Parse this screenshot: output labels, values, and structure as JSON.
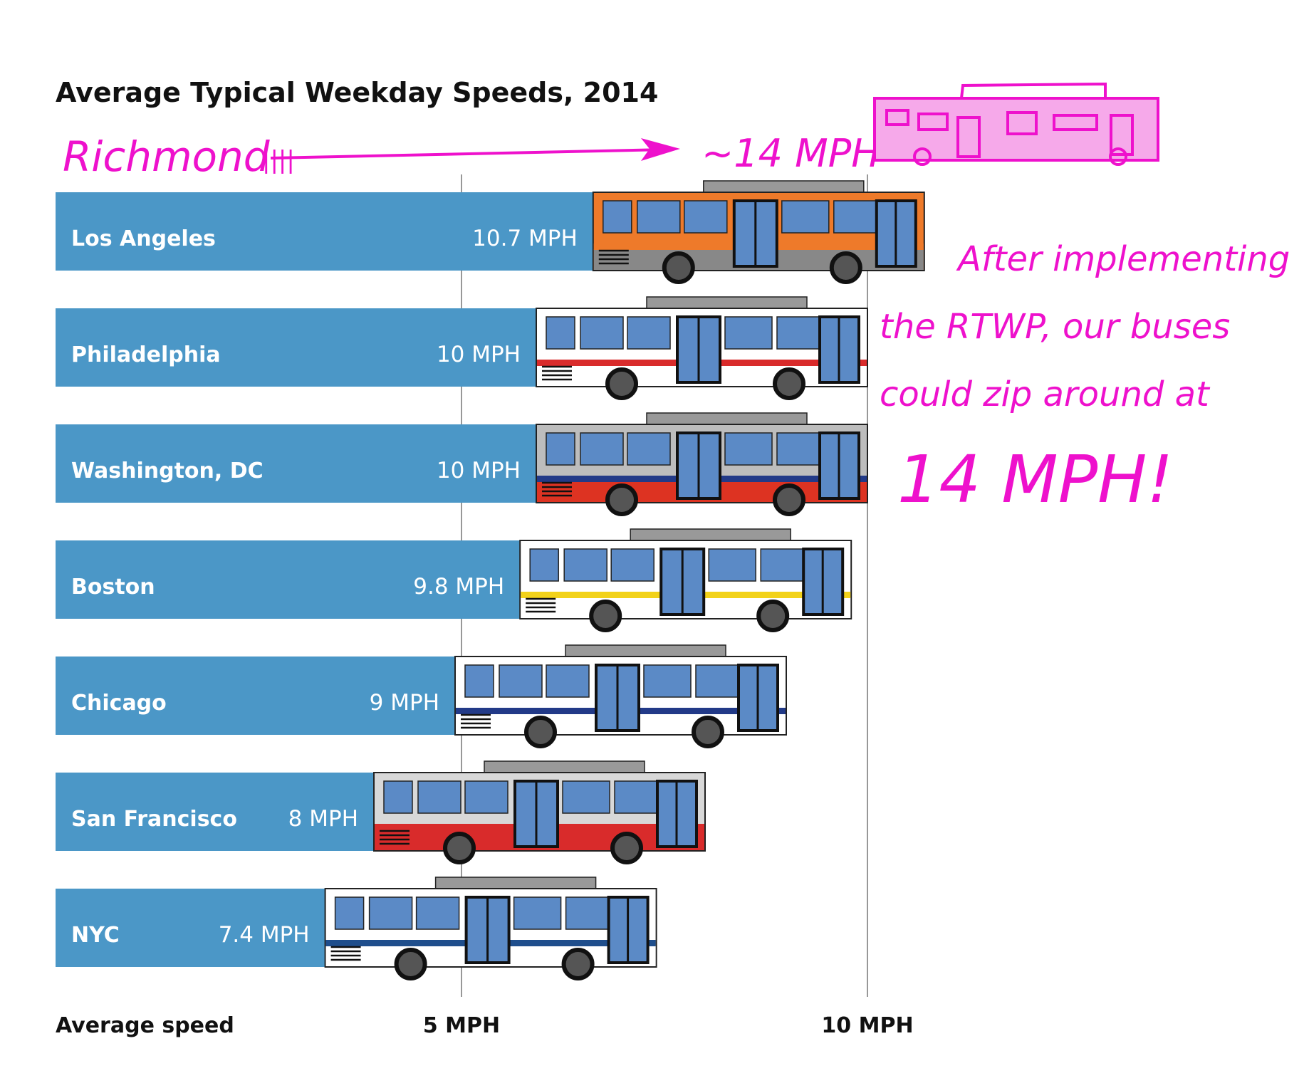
{
  "chart_data": {
    "type": "bar",
    "orientation": "horizontal",
    "title": "Average Typical Weekday Speeds, 2014",
    "xlabel": "Average speed",
    "xticks": [
      "5 MPH",
      "10 MPH"
    ],
    "xlim": [
      0,
      10.9
    ],
    "categories": [
      "Los Angeles",
      "Philadelphia",
      "Washington, DC",
      "Boston",
      "Chicago",
      "San Francisco",
      "NYC"
    ],
    "values": [
      10.7,
      10,
      10,
      9.8,
      9,
      8,
      7.4
    ],
    "value_labels": [
      "10.7 MPH",
      "10 MPH",
      "10 MPH",
      "9.8 MPH",
      "9 MPH",
      "8 MPH",
      "7.4 MPH"
    ],
    "bus_liveries": [
      {
        "body": "#ee7a2a",
        "stripe": "#ee7a2a",
        "skirt": "#888888"
      },
      {
        "body": "#ffffff",
        "stripe": "#d92b2b",
        "skirt": "#ffffff"
      },
      {
        "body": "#bdbdbd",
        "stripe": "#223a88",
        "skirt": "#dd3322"
      },
      {
        "body": "#ffffff",
        "stripe": "#f2d21a",
        "skirt": "#ffffff"
      },
      {
        "body": "#ffffff",
        "stripe": "#223a88",
        "skirt": "#ffffff"
      },
      {
        "body": "#d8d8d8",
        "stripe": "#d92b2b",
        "skirt": "#d92b2b"
      },
      {
        "body": "#ffffff",
        "stripe": "#1f4e8c",
        "skirt": "#ffffff"
      }
    ],
    "colors": {
      "bar": "#4b97c7",
      "window": "#5b8ac6",
      "annotation": "#ee11cc"
    },
    "grid": true
  },
  "annotations": {
    "richmond_label": "Richmond",
    "richmond_value": "~14 MPH",
    "richmond_tally": "||||",
    "note_lines": [
      "After implementing",
      "the RTWP, our buses",
      "could zip around at",
      "14 MPH!"
    ]
  }
}
